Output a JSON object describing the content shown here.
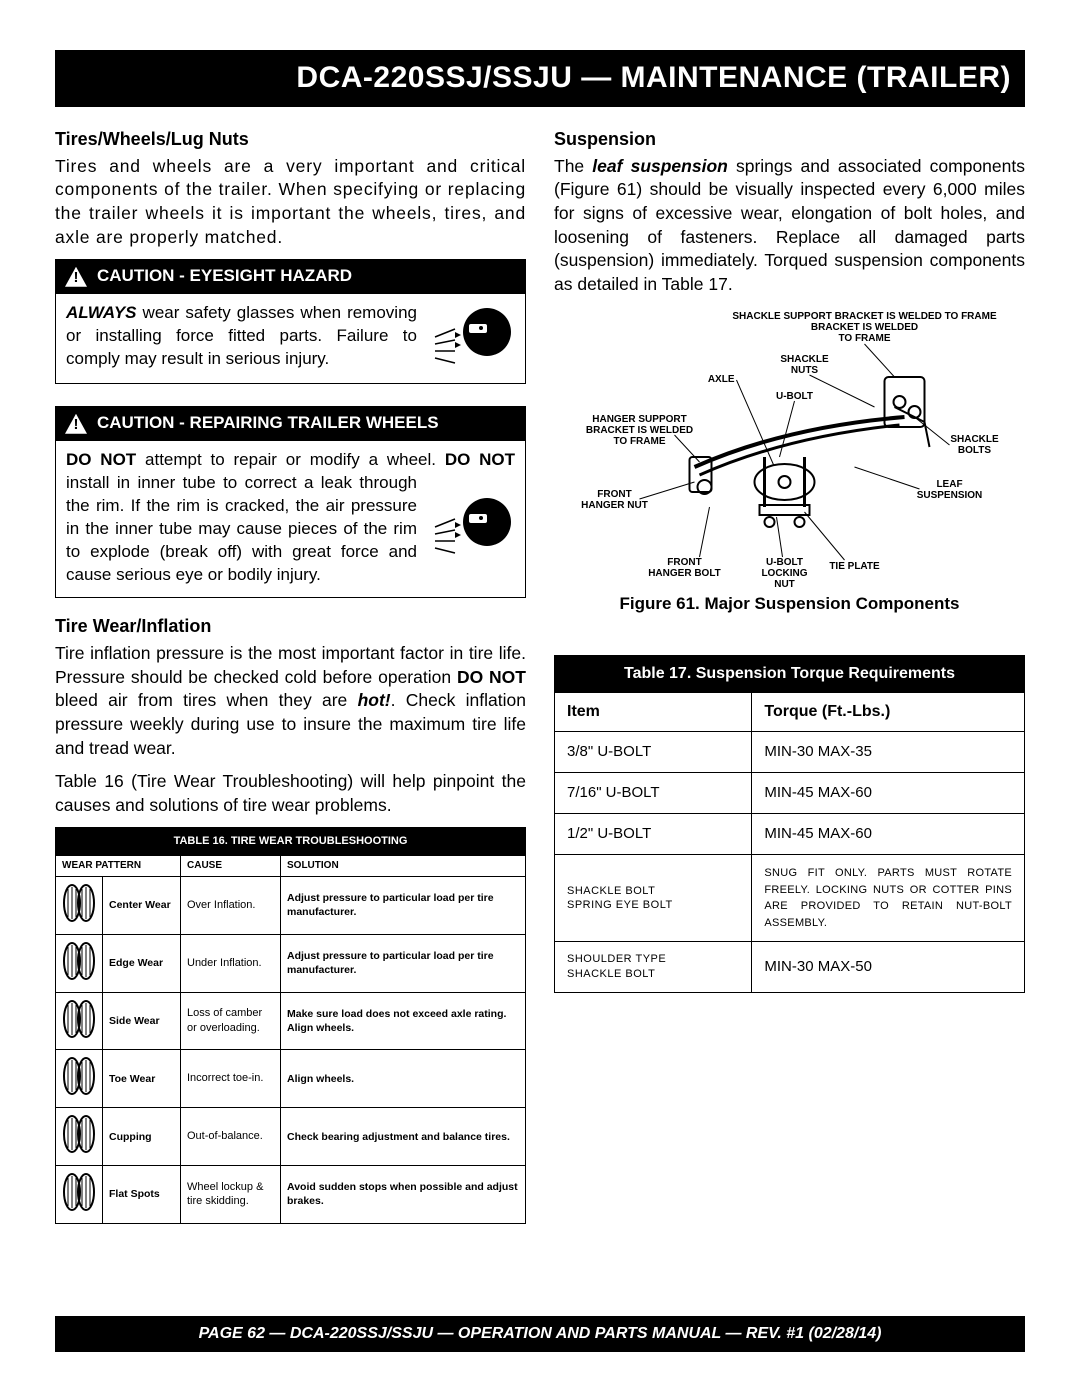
{
  "page": {
    "title": "DCA-220SSJ/SSJU — MAINTENANCE (TRAILER)",
    "footer": "PAGE 62 — DCA-220SSJ/SSJU —   OPERATION AND PARTS  MANUAL — REV. #1  (02/28/14)"
  },
  "left": {
    "h1": "Tires/Wheels/Lug Nuts",
    "p1": "Tires and wheels are a very important and critical components of the trailer.  When specifying or replacing the trailer wheels it is important the wheels, tires, and axle are properly matched.",
    "caution1_title": "CAUTION - EYESIGHT HAZARD",
    "caution1_lead": "ALWAYS",
    "caution1_body": " wear safety glasses when removing or installing force fitted parts. Failure to comply may result in serious injury.",
    "caution2_title": "CAUTION - REPAIRING TRAILER WHEELS",
    "caution2_lead1": "DO NOT",
    "caution2_mid": " attempt to repair or modify a wheel. ",
    "caution2_lead2": "DO NOT",
    "caution2_body": " install in inner tube to correct a leak through the rim.  If the rim is cracked, the air pressure in the inner tube may cause pieces of the rim to explode (break off) with great force and cause serious eye or bodily injury.",
    "h2": "Tire Wear/Inflation",
    "p2a": "Tire inflation pressure is the most important factor in tire life. Pressure should be checked cold before operation ",
    "p2b": "DO NOT",
    "p2c": " bleed air from tires when they are ",
    "p2d": "hot!",
    "p2e": ". Check inflation pressure weekly during use to insure the maximum tire life and tread wear.",
    "p3": "Table 16 (Tire Wear Troubleshooting) will help pinpoint the causes and solutions of tire wear problems.",
    "table16": {
      "title": "TABLE 16.  TIRE WEAR TROUBLESHOOTING",
      "headers": [
        "WEAR PATTERN",
        "CAUSE",
        "SOLUTION"
      ],
      "rows": [
        {
          "name": "Center Wear",
          "cause": "Over Inflation.",
          "sol": "Adjust pressure to particular load per tire manufacturer."
        },
        {
          "name": "Edge Wear",
          "cause": "Under Inflation.",
          "sol": "Adjust pressure to particular load per tire manufacturer."
        },
        {
          "name": "Side Wear",
          "cause": "Loss of camber or overloading.",
          "sol": "Make sure load does not exceed axle rating. Align wheels."
        },
        {
          "name": "Toe Wear",
          "cause": "Incorrect toe-in.",
          "sol": "Align wheels."
        },
        {
          "name": "Cupping",
          "cause": "Out-of-balance.",
          "sol": "Check bearing adjustment and balance tires."
        },
        {
          "name": "Flat Spots",
          "cause": "Wheel lockup & tire skidding.",
          "sol": "Avoid sudden stops when possible and adjust brakes."
        }
      ]
    }
  },
  "right": {
    "h1": "Suspension",
    "p1a": "The ",
    "p1b": "leaf suspension",
    "p1c": " springs and associated components (Figure 61) should be visually inspected every 6,000 miles for signs of excessive wear, elongation of bolt holes, and loosening of fasteners. Replace all damaged parts (suspension) immediately. Torqued suspension components as detailed in Table 17.",
    "diagram_labels": {
      "a": "SHACKLE SUPPORT BRACKET IS WELDED TO FRAME",
      "b": "SHACKLE NUTS",
      "c": "AXLE",
      "d": "U-BOLT",
      "e": "HANGER SUPPORT BRACKET IS WELDED TO FRAME",
      "f": "SHACKLE BOLTS",
      "g": "LEAF SUSPENSION",
      "h": "FRONT HANGER NUT",
      "i": "FRONT HANGER BOLT",
      "j": "U-BOLT LOCKING NUT",
      "k": "TIE PLATE"
    },
    "fig_caption": "Figure 61. Major Suspension Components",
    "table17": {
      "title": "Table 17.  Suspension Torque Requirements",
      "headers": [
        "Item",
        "Torque (Ft.-Lbs.)"
      ],
      "rows": [
        {
          "item": "3/8\" U-BOLT",
          "torque": "MIN-30 MAX-35",
          "small": false
        },
        {
          "item": "7/16\" U-BOLT",
          "torque": "MIN-45 MAX-60",
          "small": false
        },
        {
          "item": "1/2\" U-BOLT",
          "torque": "MIN-45 MAX-60",
          "small": false
        },
        {
          "item": "SHACKLE BOLT SPRING EYE BOLT",
          "torque": "SNUG FIT ONLY.  PARTS MUST ROTATE FREELY. LOCKING NUTS OR COTTER PINS ARE PROVIDED TO RETAIN NUT-BOLT ASSEMBLY.",
          "small": true
        },
        {
          "item": "SHOULDER TYPE SHACKLE BOLT",
          "torque": "MIN-30 MAX-50",
          "small": true,
          "torque_small": false
        }
      ]
    }
  },
  "colors": {
    "black": "#000000",
    "white": "#ffffff"
  }
}
